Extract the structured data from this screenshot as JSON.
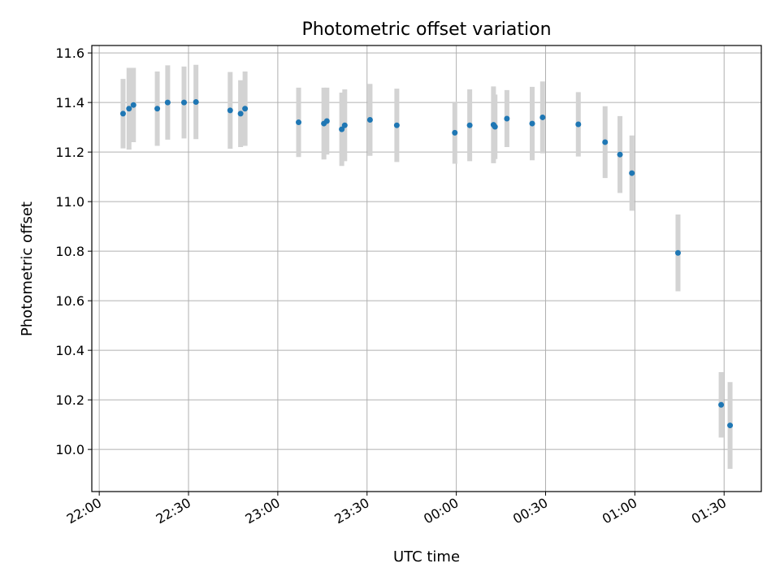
{
  "chart_data": {
    "type": "scatter",
    "title": "Photometric offset variation",
    "xlabel": "UTC time",
    "ylabel": "Photometric offset",
    "xlim": [
      "21:57:30",
      "01:42:30"
    ],
    "ylim": [
      9.83,
      11.63
    ],
    "xticks": [
      "22:00",
      "22:30",
      "23:00",
      "23:30",
      "00:00",
      "00:30",
      "01:00",
      "01:30"
    ],
    "yticks": [
      "10.0",
      "10.2",
      "10.4",
      "10.6",
      "10.8",
      "11.0",
      "11.2",
      "11.4",
      "11.6"
    ],
    "grid": true,
    "colors": {
      "marker": "#1f77b4",
      "errorbar": "#d3d3d3",
      "grid": "#b0b0b0"
    },
    "points": [
      {
        "t": "22:08:00",
        "y": 11.355,
        "err": 0.14
      },
      {
        "t": "22:10:00",
        "y": 11.375,
        "err": 0.165
      },
      {
        "t": "22:11:30",
        "y": 11.39,
        "err": 0.15
      },
      {
        "t": "22:19:30",
        "y": 11.375,
        "err": 0.15
      },
      {
        "t": "22:23:00",
        "y": 11.4,
        "err": 0.15
      },
      {
        "t": "22:28:30",
        "y": 11.4,
        "err": 0.145
      },
      {
        "t": "22:32:30",
        "y": 11.402,
        "err": 0.15
      },
      {
        "t": "22:44:00",
        "y": 11.368,
        "err": 0.155
      },
      {
        "t": "22:47:30",
        "y": 11.355,
        "err": 0.135
      },
      {
        "t": "22:49:00",
        "y": 11.375,
        "err": 0.15
      },
      {
        "t": "23:07:00",
        "y": 11.32,
        "err": 0.14
      },
      {
        "t": "23:15:30",
        "y": 11.315,
        "err": 0.145
      },
      {
        "t": "23:16:30",
        "y": 11.325,
        "err": 0.135
      },
      {
        "t": "23:21:30",
        "y": 11.292,
        "err": 0.148
      },
      {
        "t": "23:22:30",
        "y": 11.308,
        "err": 0.145
      },
      {
        "t": "23:31:00",
        "y": 11.33,
        "err": 0.145
      },
      {
        "t": "23:40:00",
        "y": 11.308,
        "err": 0.148
      },
      {
        "t": "23:59:30",
        "y": 11.278,
        "err": 0.125
      },
      {
        "t": "00:04:30",
        "y": 11.308,
        "err": 0.145
      },
      {
        "t": "00:12:30",
        "y": 11.31,
        "err": 0.155
      },
      {
        "t": "00:13:00",
        "y": 11.302,
        "err": 0.13
      },
      {
        "t": "00:17:00",
        "y": 11.335,
        "err": 0.115
      },
      {
        "t": "00:25:30",
        "y": 11.315,
        "err": 0.148
      },
      {
        "t": "00:29:00",
        "y": 11.34,
        "err": 0.145
      },
      {
        "t": "00:41:00",
        "y": 11.312,
        "err": 0.13
      },
      {
        "t": "00:50:00",
        "y": 11.24,
        "err": 0.145
      },
      {
        "t": "00:55:00",
        "y": 11.19,
        "err": 0.155
      },
      {
        "t": "00:59:00",
        "y": 11.115,
        "err": 0.152
      },
      {
        "t": "01:14:30",
        "y": 10.793,
        "err": 0.155
      },
      {
        "t": "01:29:00",
        "y": 10.18,
        "err": 0.132
      },
      {
        "t": "01:32:00",
        "y": 10.097,
        "err": 0.175
      }
    ]
  }
}
